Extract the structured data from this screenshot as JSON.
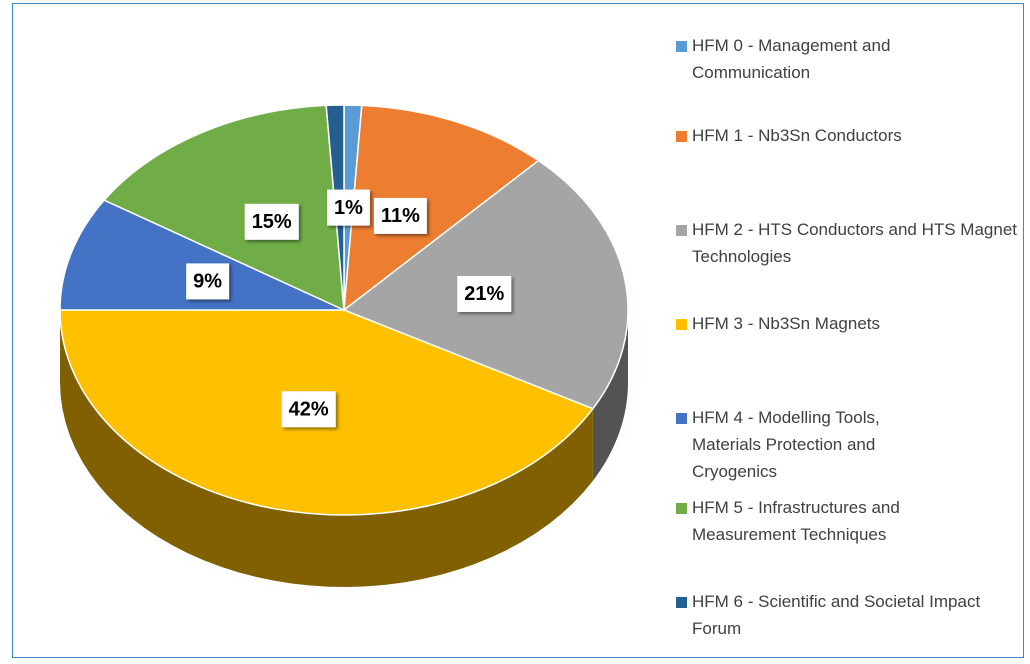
{
  "chart_data": {
    "type": "pie",
    "categories": [
      "HFM 0 - Management and Communication",
      "HFM 1 - Nb3Sn Conductors",
      "HFM 2 - HTS Conductors and HTS Magnet Technologies",
      "HFM 3 - Nb3Sn Magnets",
      "HFM 4 - Modelling Tools, Materials Protection and Cryogenics",
      "HFM 5 - Infrastructures and Measurement Techniques",
      "HFM 6 - Scientific and Societal Impact  Forum"
    ],
    "values": [
      1,
      11,
      21,
      42,
      9,
      15,
      1
    ],
    "value_labels": [
      "1%",
      "11%",
      "21%",
      "42%",
      "9%",
      "15%",
      null
    ],
    "colors": [
      "#5b9bd5",
      "#ed7d31",
      "#a5a5a5",
      "#ffc000",
      "#4472c4",
      "#70ad47",
      "#255e91"
    ],
    "legend": "right"
  }
}
